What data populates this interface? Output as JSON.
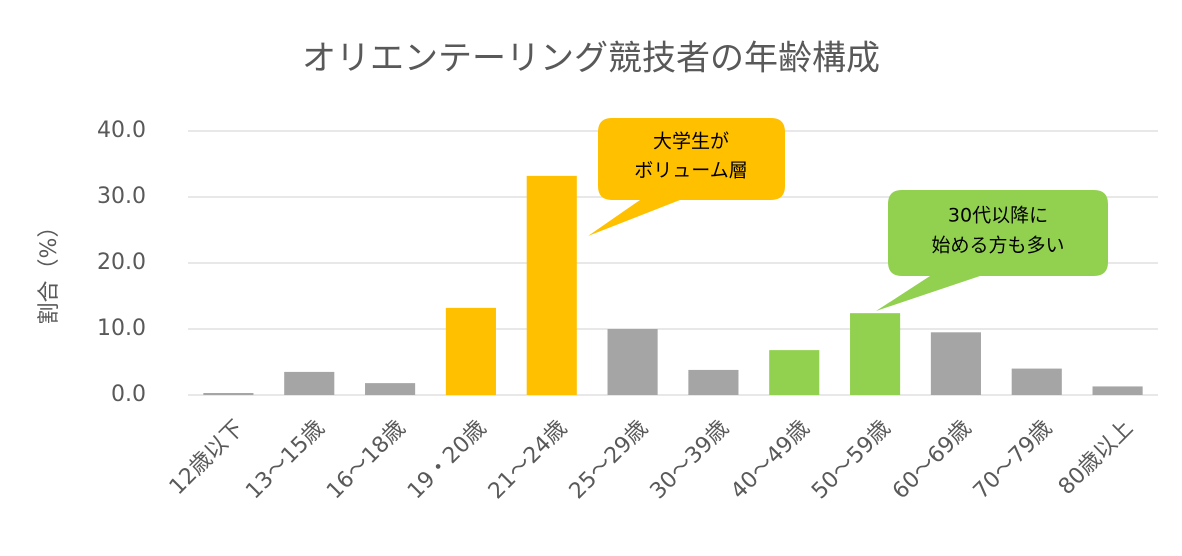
{
  "chart_data": {
    "type": "bar",
    "title": "オリエンテーリング競技者の年齢構成",
    "y_label": "割合（%）",
    "categories": [
      "12歳以下",
      "13～15歳",
      "16～18歳",
      "19・20歳",
      "21～24歳",
      "25～29歳",
      "30～39歳",
      "40～49歳",
      "50～59歳",
      "60～69歳",
      "70～79歳",
      "80歳以上"
    ],
    "values": [
      0.3,
      3.5,
      1.8,
      13.2,
      33.2,
      10.0,
      3.8,
      6.8,
      12.4,
      9.5,
      4.0,
      1.3
    ],
    "colors": [
      "#a5a5a5",
      "#a5a5a5",
      "#a5a5a5",
      "#ffc000",
      "#ffc000",
      "#a5a5a5",
      "#a5a5a5",
      "#92d050",
      "#92d050",
      "#a5a5a5",
      "#a5a5a5",
      "#a5a5a5"
    ],
    "ylim": [
      0,
      40
    ],
    "yticks": [
      {
        "value": 0,
        "label": "0.0"
      },
      {
        "value": 10,
        "label": "10.0"
      },
      {
        "value": 20,
        "label": "20.0"
      },
      {
        "value": 30,
        "label": "30.0"
      },
      {
        "value": 40,
        "label": "40.0"
      }
    ],
    "grid": true,
    "annotations": [
      {
        "lines": [
          "大学生が",
          "ボリューム層"
        ]
      },
      {
        "lines": [
          "30代以降に",
          "始める方も多い"
        ]
      }
    ]
  }
}
